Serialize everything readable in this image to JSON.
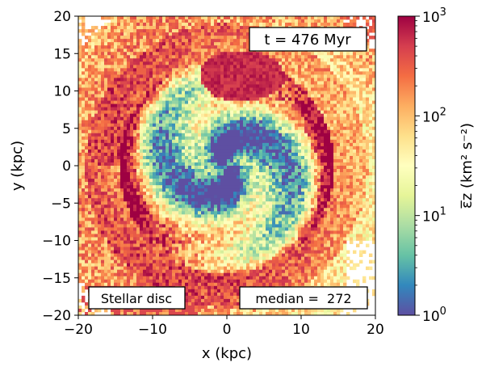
{
  "chart_data": {
    "type": "heatmap",
    "xlabel": "x (kpc)",
    "ylabel": "y (kpc)",
    "xlim": [
      -20,
      20
    ],
    "ylim": [
      -20,
      20
    ],
    "xticks": [
      -20,
      -10,
      0,
      10,
      20
    ],
    "yticks": [
      -20,
      -15,
      -10,
      -5,
      0,
      5,
      10,
      15,
      20
    ],
    "xtick_labels": [
      "−20",
      "−10",
      "0",
      "10",
      "20"
    ],
    "ytick_labels": [
      "−20",
      "−15",
      "−10",
      "−5",
      "0",
      "5",
      "10",
      "15",
      "20"
    ],
    "annotations": {
      "time": "t = 476 Myr",
      "component": "Stellar disc",
      "median": "median =  272"
    },
    "median_value": 272,
    "colorbar": {
      "scale": "log",
      "range": [
        1,
        1000
      ],
      "colormap": "Spectral_r",
      "label": "ε̅z (km² s⁻²)",
      "tick_values": [
        1,
        10,
        100,
        1000
      ],
      "tick_bases": [
        "10",
        "10",
        "10",
        "10"
      ],
      "tick_exponents": [
        "0",
        "1",
        "2",
        "3"
      ]
    }
  },
  "colors": {
    "cmap_stops": [
      "#5e4fa2",
      "#3288bd",
      "#66c2a5",
      "#abdda4",
      "#e6f598",
      "#ffffbf",
      "#fee08b",
      "#fdae61",
      "#f46d43",
      "#d53e4f",
      "#9e0142"
    ]
  }
}
